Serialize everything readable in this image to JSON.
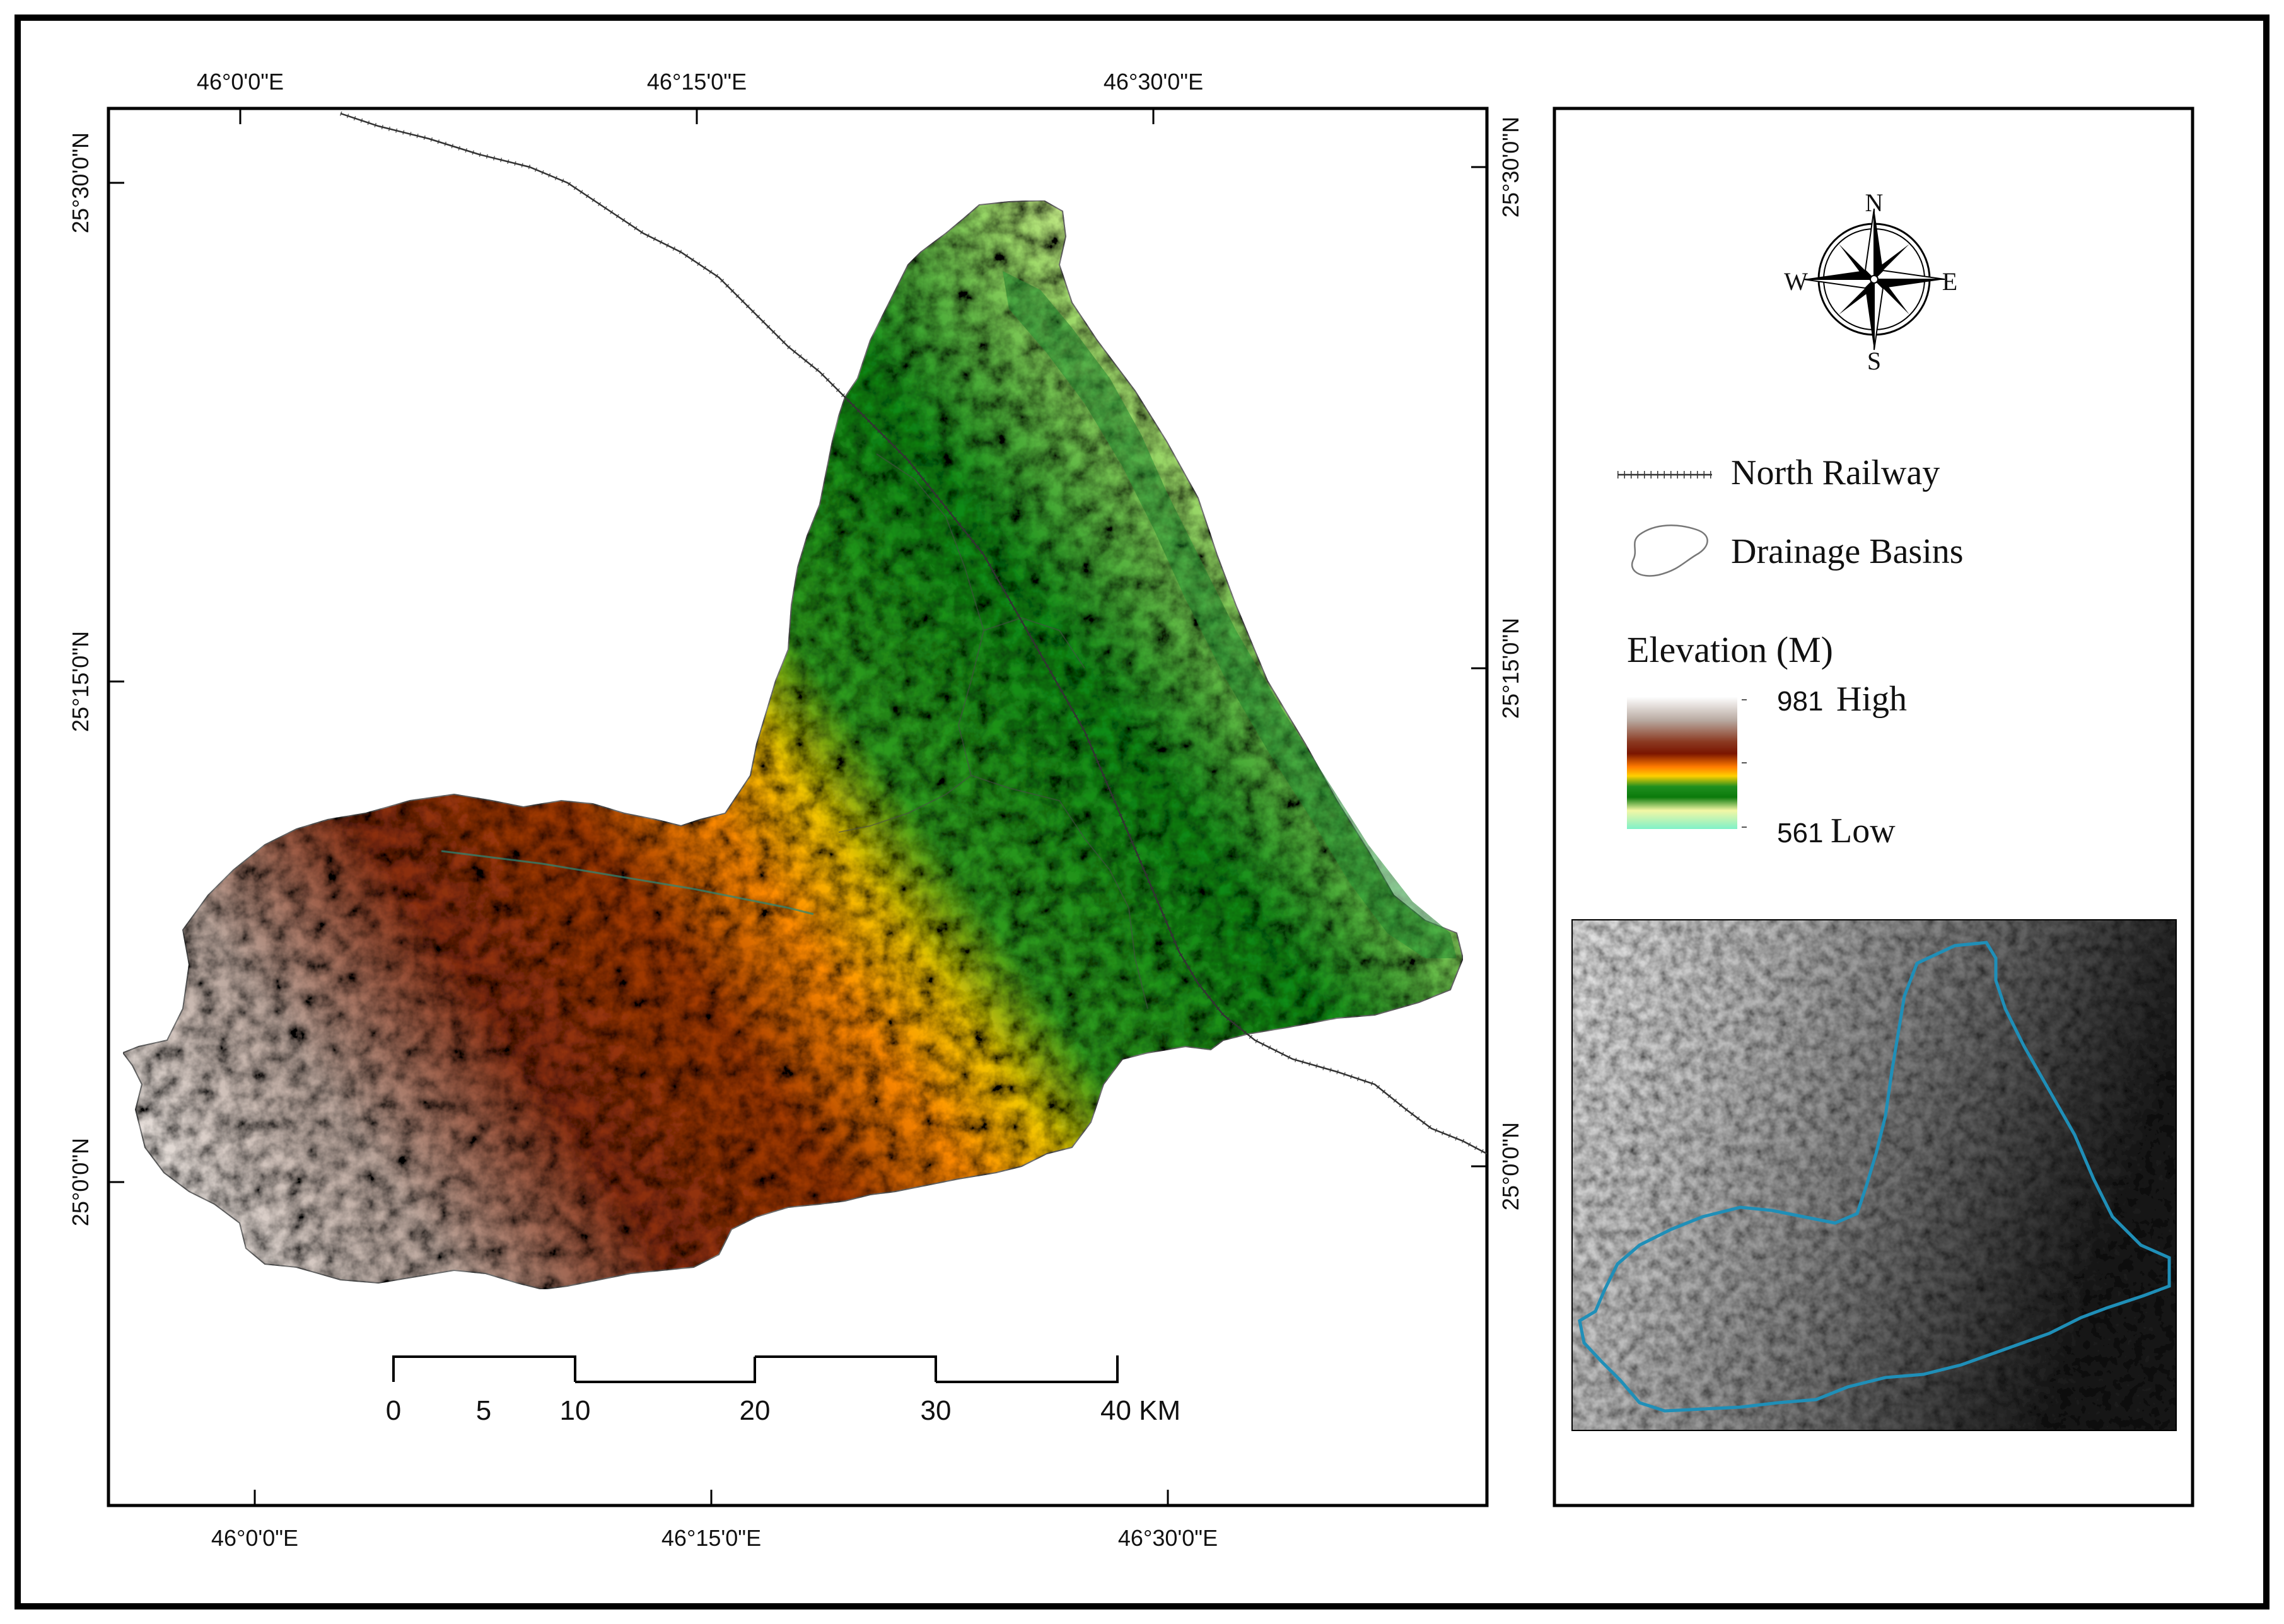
{
  "map": {
    "top_longitudes": [
      "46°0'0\"E",
      "46°15'0\"E",
      "46°30'0\"E"
    ],
    "bottom_longitudes": [
      "46°0'0\"E",
      "46°15'0\"E",
      "46°30'0\"E"
    ],
    "left_latitudes": [
      "25°30'0\"N",
      "25°15'0\"N",
      "25°0'0\"N"
    ],
    "right_latitudes": [
      "25°30'0\"N",
      "25°15'0\"N",
      "25°0'0\"N"
    ]
  },
  "scale_bar": {
    "ticks": [
      "0",
      "5",
      "10",
      "20",
      "30",
      "40 KM"
    ]
  },
  "north_arrow": {
    "n": "N",
    "s": "S",
    "e": "E",
    "w": "W"
  },
  "legend": {
    "railway_label": "North Railway",
    "basins_label": "Drainage Basins",
    "elevation_title": "Elevation (M)",
    "high_value": "981",
    "high_label": "High",
    "low_value": "561",
    "low_label": "Low",
    "ramp_colors": [
      "#ffffff",
      "#b8a9a0",
      "#8b3a22",
      "#7a1500",
      "#ff7b00",
      "#ffd000",
      "#1f8f1f",
      "#0b7a0b",
      "#f3f7a5",
      "#7ef1c8"
    ]
  },
  "colors": {
    "railway": "#333333",
    "inset_basin_outline": "#1f8fb8"
  }
}
